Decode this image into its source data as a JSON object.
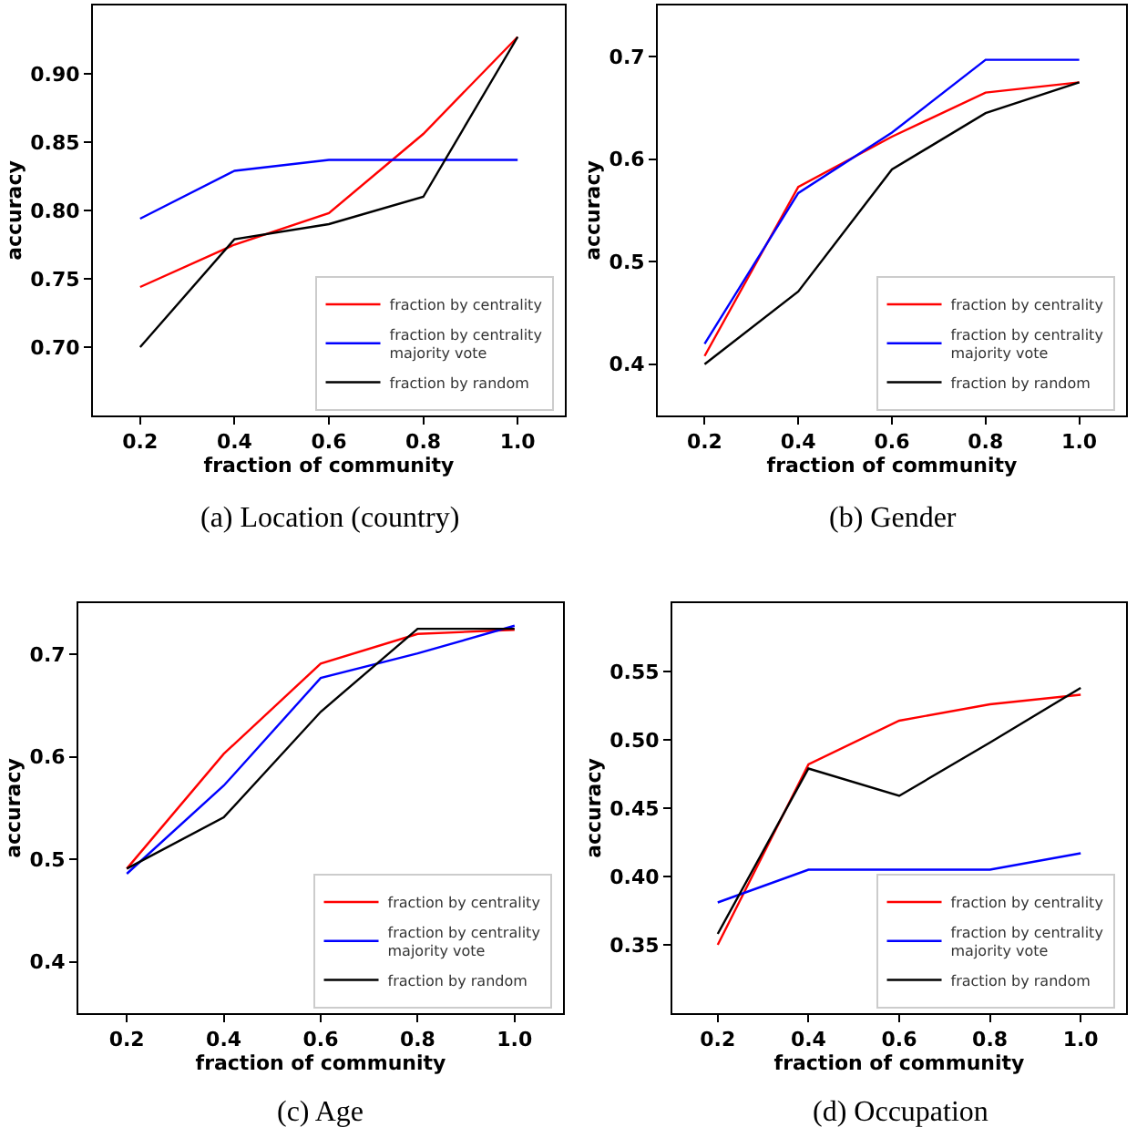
{
  "chart_data": [
    {
      "type": "line",
      "title": "(a) Location (country)",
      "xlabel": "fraction of community",
      "ylabel": "accuracy",
      "x": [
        0.2,
        0.4,
        0.6,
        0.8,
        1.0
      ],
      "xlim": [
        0.1,
        1.1
      ],
      "xticks": [
        {
          "value": 0.2,
          "label": "0.2"
        },
        {
          "value": 0.4,
          "label": "0.4"
        },
        {
          "value": 0.6,
          "label": "0.6"
        },
        {
          "value": 0.8,
          "label": "0.8"
        },
        {
          "value": 1.0,
          "label": "1.0"
        }
      ],
      "ylim": [
        0.65,
        0.95
      ],
      "yticks": [
        {
          "value": 0.7,
          "label": "0.70"
        },
        {
          "value": 0.75,
          "label": "0.75"
        },
        {
          "value": 0.8,
          "label": "0.80"
        },
        {
          "value": 0.85,
          "label": "0.85"
        },
        {
          "value": 0.9,
          "label": "0.90"
        }
      ],
      "legend": "bottom right",
      "marker": "none",
      "line_style": "solid",
      "series": [
        {
          "name": "fraction by centrality",
          "color": "#ff0000",
          "values": [
            0.744,
            0.775,
            0.798,
            0.856,
            0.927
          ]
        },
        {
          "name": "fraction by centrality\nmajority vote",
          "color": "#0000ff",
          "values": [
            0.794,
            0.829,
            0.837,
            0.837,
            0.837
          ]
        },
        {
          "name": "fraction by random",
          "color": "#000000",
          "values": [
            0.7,
            0.779,
            0.79,
            0.81,
            0.927
          ]
        }
      ]
    },
    {
      "type": "line",
      "title": "(b) Gender",
      "xlabel": "fraction of community",
      "ylabel": "accuracy",
      "x": [
        0.2,
        0.4,
        0.6,
        0.8,
        1.0
      ],
      "xlim": [
        0.1,
        1.1
      ],
      "xticks": [
        {
          "value": 0.2,
          "label": "0.2"
        },
        {
          "value": 0.4,
          "label": "0.4"
        },
        {
          "value": 0.6,
          "label": "0.6"
        },
        {
          "value": 0.8,
          "label": "0.8"
        },
        {
          "value": 1.0,
          "label": "1.0"
        }
      ],
      "ylim": [
        0.35,
        0.75
      ],
      "yticks": [
        0.4,
        0.5,
        0.6,
        0.7
      ],
      "legend": "bottom right",
      "marker": "none",
      "line_style": "solid",
      "series": [
        {
          "name": "fraction by centrality",
          "color": "#ff0000",
          "values": [
            0.408,
            0.573,
            0.622,
            0.665,
            0.675
          ]
        },
        {
          "name": "fraction by centrality\nmajority vote",
          "color": "#0000ff",
          "values": [
            0.42,
            0.567,
            0.626,
            0.697,
            0.697
          ]
        },
        {
          "name": "fraction by random",
          "color": "#000000",
          "values": [
            0.4,
            0.471,
            0.59,
            0.645,
            0.675
          ]
        }
      ]
    },
    {
      "type": "line",
      "title": "(c) Age",
      "xlabel": "fraction of community",
      "ylabel": "accuracy",
      "x": [
        0.2,
        0.4,
        0.6,
        0.8,
        1.0
      ],
      "xlim": [
        0.1,
        1.1
      ],
      "xticks": [
        {
          "value": 0.2,
          "label": "0.2"
        },
        {
          "value": 0.4,
          "label": "0.4"
        },
        {
          "value": 0.6,
          "label": "0.6"
        },
        {
          "value": 0.8,
          "label": "0.8"
        },
        {
          "value": 1.0,
          "label": "1.0"
        }
      ],
      "ylim": [
        0.35,
        0.75
      ],
      "yticks": [
        0.4,
        0.5,
        0.6,
        0.7
      ],
      "legend": "bottom right",
      "marker": "none",
      "line_style": "solid",
      "series": [
        {
          "name": "fraction by centrality",
          "color": "#ff0000",
          "values": [
            0.491,
            0.603,
            0.691,
            0.72,
            0.724
          ]
        },
        {
          "name": "fraction by centrality\nmajority vote",
          "color": "#0000ff",
          "values": [
            0.486,
            0.572,
            0.677,
            0.701,
            0.728
          ]
        },
        {
          "name": "fraction by random",
          "color": "#000000",
          "values": [
            0.491,
            0.541,
            0.644,
            0.725,
            0.725
          ]
        }
      ]
    },
    {
      "type": "line",
      "title": "(d) Occupation",
      "xlabel": "fraction of community",
      "ylabel": "accuracy",
      "x": [
        0.2,
        0.4,
        0.6,
        0.8,
        1.0
      ],
      "xlim": [
        0.1,
        1.1
      ],
      "xticks": [
        {
          "value": 0.2,
          "label": "0.2"
        },
        {
          "value": 0.4,
          "label": "0.4"
        },
        {
          "value": 0.6,
          "label": "0.6"
        },
        {
          "value": 0.8,
          "label": "0.8"
        },
        {
          "value": 1.0,
          "label": "1.0"
        }
      ],
      "ylim": [
        0.3,
        0.6
      ],
      "yticks": [
        {
          "value": 0.35,
          "label": "0.35"
        },
        {
          "value": 0.4,
          "label": "0.40"
        },
        {
          "value": 0.45,
          "label": "0.45"
        },
        {
          "value": 0.5,
          "label": "0.50"
        },
        {
          "value": 0.55,
          "label": "0.55"
        }
      ],
      "legend": "bottom right",
      "marker": "none",
      "line_style": "solid",
      "series": [
        {
          "name": "fraction by centrality",
          "color": "#ff0000",
          "values": [
            0.35,
            0.482,
            0.514,
            0.526,
            0.533
          ]
        },
        {
          "name": "fraction by centrality\nmajority vote",
          "color": "#0000ff",
          "values": [
            0.381,
            0.405,
            0.405,
            0.405,
            0.417
          ]
        },
        {
          "name": "fraction by random",
          "color": "#000000",
          "values": [
            0.358,
            0.479,
            0.459,
            0.498,
            0.538
          ]
        }
      ]
    }
  ]
}
